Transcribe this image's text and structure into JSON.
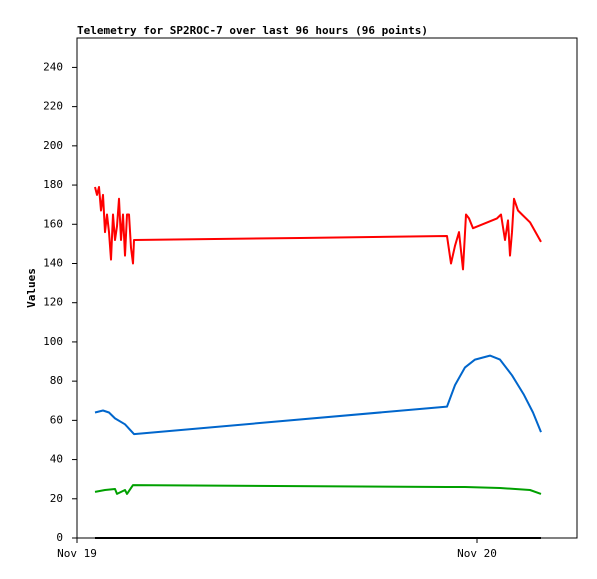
{
  "chart_data": {
    "type": "line",
    "title": "Telemetry for SP2ROC-7 over last 96 hours (96 points)",
    "ylabel": "Values",
    "xlim": [
      0,
      30
    ],
    "xticks": [
      {
        "value": 0,
        "label": "Nov 19"
      },
      {
        "value": 24,
        "label": "Nov 20"
      }
    ],
    "ylim": [
      0,
      255
    ],
    "yticks": [
      0,
      20,
      40,
      60,
      80,
      100,
      120,
      140,
      160,
      180,
      200,
      220,
      240
    ],
    "series": [
      {
        "color": "#ff0000",
        "x": [
          1.08,
          1.2,
          1.32,
          1.44,
          1.56,
          1.68,
          1.8,
          1.92,
          2.04,
          2.16,
          2.28,
          2.4,
          2.52,
          2.64,
          2.76,
          2.88,
          3.0,
          3.12,
          3.24,
          3.36,
          3.42,
          13.38,
          22.2,
          22.44,
          22.68,
          22.92,
          23.16,
          23.34,
          23.52,
          23.76,
          25.2,
          25.44,
          25.68,
          25.86,
          25.98,
          26.1,
          26.22,
          26.46,
          26.7,
          27.18,
          27.84
        ],
        "values": [
          179,
          175,
          179,
          167,
          175,
          156,
          165,
          156,
          142,
          165,
          152,
          159,
          173,
          152,
          165,
          144,
          165,
          165,
          148,
          140,
          152,
          153,
          154,
          140,
          149,
          156,
          137,
          165,
          163,
          158,
          163,
          165,
          152,
          162,
          144,
          156,
          173,
          167,
          165,
          161,
          151
        ]
      },
      {
        "color": "#0066cc",
        "x": [
          1.08,
          1.56,
          1.92,
          2.28,
          2.88,
          3.42,
          22.2,
          22.68,
          23.28,
          23.88,
          24.78,
          25.38,
          26.1,
          26.82,
          27.36,
          27.84
        ],
        "values": [
          64,
          65,
          64,
          61,
          58,
          53,
          67,
          78,
          87,
          91,
          93,
          91,
          83,
          73,
          64,
          54
        ]
      },
      {
        "color": "#00a000",
        "x": [
          1.08,
          1.68,
          2.28,
          2.4,
          2.88,
          3.0,
          3.36,
          22.2,
          23.28,
          25.38,
          27.18,
          27.84
        ],
        "values": [
          23.5,
          24.5,
          25,
          22.5,
          24.5,
          22.5,
          27,
          26,
          26,
          25.5,
          24.5,
          22.5
        ]
      },
      {
        "color": "#000000",
        "x": [
          1.08,
          27.84
        ],
        "values": [
          0,
          0
        ]
      }
    ]
  }
}
